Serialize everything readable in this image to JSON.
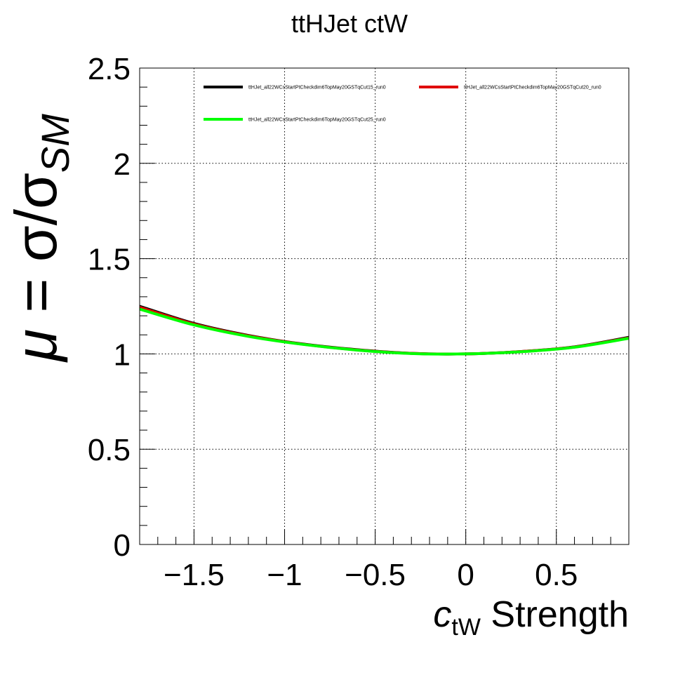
{
  "chart_data": {
    "type": "line",
    "title": "ttHJet ctW",
    "xlabel": {
      "main": "c",
      "sub": "tW",
      "rest": " Strength"
    },
    "ylabel": {
      "mu": "μ",
      "eq": " = σ/σ",
      "sub": "SM"
    },
    "xlim": [
      -1.8,
      0.9
    ],
    "ylim": [
      0,
      2.5
    ],
    "xticks": [
      -1.5,
      -1,
      -0.5,
      0,
      0.5
    ],
    "xtick_labels": [
      "−1.5",
      "−1",
      "−0.5",
      "0",
      "0.5"
    ],
    "yticks": [
      0,
      0.5,
      1,
      1.5,
      2,
      2.5
    ],
    "ytick_labels": [
      "0",
      "0.5",
      "1",
      "1.5",
      "2",
      "2.5"
    ],
    "grid": true,
    "legend_position": "top",
    "series": [
      {
        "name": "ttHJet_all22WCsStartPtCheckdim6TopMay20GSTqCut15_run0",
        "color": "#000000",
        "x": [
          -1.8,
          -1.5,
          -1.2,
          -0.9,
          -0.6,
          -0.3,
          0,
          0.3,
          0.6,
          0.9
        ],
        "y": [
          1.25,
          1.16,
          1.097,
          1.052,
          1.022,
          1.003,
          1.0,
          1.012,
          1.037,
          1.087
        ]
      },
      {
        "name": "ttHJet_all22WCsStartPtCheckdim6TopMay20GSTqCut20_run0",
        "color": "#e00000",
        "x": [
          -1.8,
          -1.5,
          -1.2,
          -0.9,
          -0.6,
          -0.3,
          0,
          0.3,
          0.6,
          0.9
        ],
        "y": [
          1.245,
          1.157,
          1.095,
          1.051,
          1.021,
          1.003,
          1.0,
          1.012,
          1.036,
          1.084
        ]
      },
      {
        "name": "ttHJet_all22WCsStartPtCheckdim6TopMay20GSTqCut25_run0",
        "color": "#00ff00",
        "x": [
          -1.8,
          -1.5,
          -1.2,
          -0.9,
          -0.6,
          -0.3,
          0,
          0.3,
          0.6,
          0.9
        ],
        "y": [
          1.235,
          1.152,
          1.092,
          1.05,
          1.02,
          1.002,
          1.0,
          1.011,
          1.035,
          1.082
        ]
      }
    ]
  }
}
